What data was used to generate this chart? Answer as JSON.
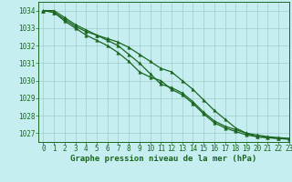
{
  "title": "Graphe pression niveau de la mer (hPa)",
  "background_color": "#c6eef0",
  "grid_color": "#a0cccc",
  "line_color": "#1a6620",
  "xlim": [
    -0.5,
    23
  ],
  "ylim": [
    1026.5,
    1034.5
  ],
  "yticks": [
    1027,
    1028,
    1029,
    1030,
    1031,
    1032,
    1033,
    1034
  ],
  "xticks": [
    0,
    1,
    2,
    3,
    4,
    5,
    6,
    7,
    8,
    9,
    10,
    11,
    12,
    13,
    14,
    15,
    16,
    17,
    18,
    19,
    20,
    21,
    22,
    23
  ],
  "hours": [
    0,
    1,
    2,
    3,
    4,
    5,
    6,
    7,
    8,
    9,
    10,
    11,
    12,
    13,
    14,
    15,
    16,
    17,
    18,
    19,
    20,
    21,
    22,
    23
  ],
  "line1": [
    1034.0,
    1033.9,
    1033.5,
    1033.1,
    1032.8,
    1032.6,
    1032.4,
    1032.2,
    1031.9,
    1031.5,
    1031.1,
    1030.7,
    1030.5,
    1030.0,
    1029.5,
    1028.9,
    1028.3,
    1027.8,
    1027.3,
    1027.0,
    1026.8,
    1026.75,
    1026.7,
    1026.7
  ],
  "line2": [
    1034.0,
    1033.9,
    1033.4,
    1033.0,
    1032.6,
    1032.3,
    1032.0,
    1031.6,
    1031.1,
    1030.5,
    1030.2,
    1030.0,
    1029.5,
    1029.2,
    1028.7,
    1028.1,
    1027.6,
    1027.3,
    1027.1,
    1026.9,
    1026.8,
    1026.75,
    1026.7,
    1026.65
  ],
  "line3": [
    1034.0,
    1034.0,
    1033.6,
    1033.2,
    1032.9,
    1032.6,
    1032.3,
    1032.0,
    1031.5,
    1031.0,
    1030.4,
    1029.8,
    1029.6,
    1029.3,
    1028.8,
    1028.2,
    1027.7,
    1027.4,
    1027.2,
    1027.0,
    1026.9,
    1026.8,
    1026.75,
    1026.7
  ],
  "figsize": [
    3.2,
    2.0
  ],
  "dpi": 100,
  "tick_fontsize": 5.5,
  "label_fontsize": 6.5,
  "linewidth": 0.9,
  "markersize": 2.5
}
